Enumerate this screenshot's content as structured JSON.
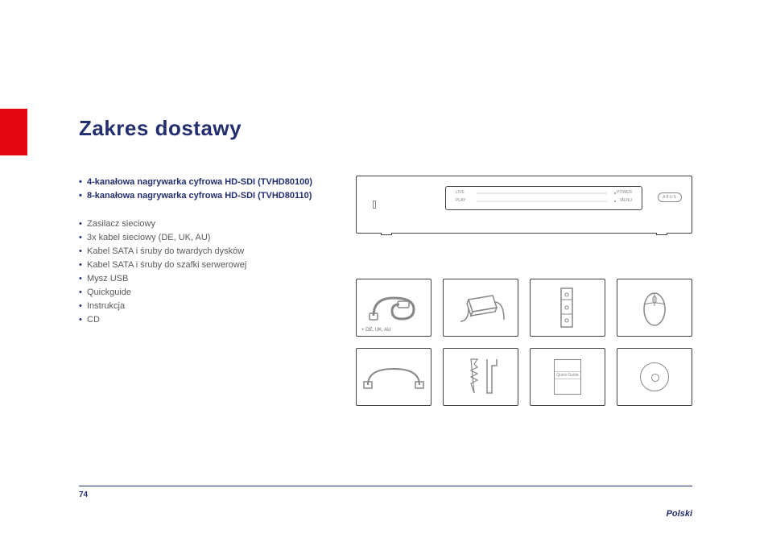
{
  "colors": {
    "brand_navy": "#232e6f",
    "red_tab": "#e30613",
    "text_gray": "#5a5a5a",
    "line_gray": "#666666",
    "white": "#ffffff"
  },
  "typography": {
    "title_fontsize_pt": 20,
    "body_fontsize_pt": 8.5,
    "footer_fontsize_pt": 8
  },
  "title": "Zakres dostawy",
  "bold_items": [
    "4-kanałowa nagrywarka cyfrowa HD-SDI (TVHD80100)",
    "8-kanałowa nagrywarka cyfrowa HD-SDI (TVHD80110)"
  ],
  "plain_items": [
    "Zasilacz sieciowy",
    "3x kabel sieciowy (DE, UK, AU)",
    "Kabel SATA i śruby do twardych dysków",
    "Kabel SATA i śruby do szafki serwerowej",
    "Mysz USB",
    "Quickguide",
    "Instrukcja",
    "CD"
  ],
  "device": {
    "labels": {
      "live": "LIVE",
      "play": "PLAY",
      "power": "POWER",
      "menu": "MENU"
    },
    "brand": "ABUS"
  },
  "thumbnails": {
    "row1": [
      {
        "name": "power-cable",
        "caption": "+ DE, UK, AU"
      },
      {
        "name": "power-adapter",
        "caption": ""
      },
      {
        "name": "bracket",
        "caption": ""
      },
      {
        "name": "mouse",
        "caption": ""
      }
    ],
    "row2": [
      {
        "name": "sata-cable",
        "caption": ""
      },
      {
        "name": "screws",
        "caption": ""
      },
      {
        "name": "quick-guide",
        "caption": "",
        "quick_guide_label": "Quick Guide"
      },
      {
        "name": "cd",
        "caption": ""
      }
    ]
  },
  "footer": {
    "page_number": "74",
    "language": "Polski"
  }
}
